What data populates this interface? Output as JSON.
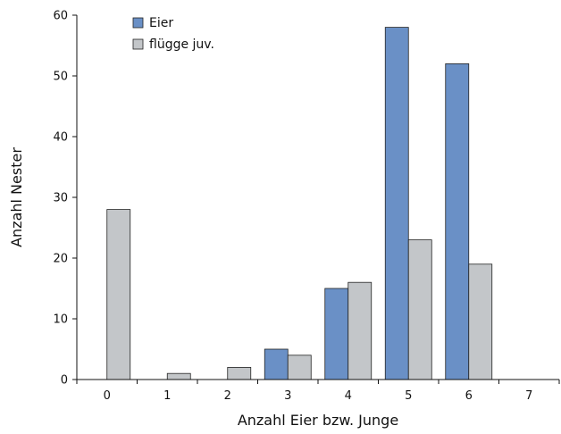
{
  "chart_data": {
    "type": "bar",
    "categories": [
      "0",
      "1",
      "2",
      "3",
      "4",
      "5",
      "6",
      "7"
    ],
    "series": [
      {
        "name": "Eier",
        "color": "#6a90c6",
        "values": [
          0,
          0,
          0,
          5,
          15,
          58,
          52,
          0
        ]
      },
      {
        "name": "flügge juv.",
        "color": "#c3c6c9",
        "values": [
          28,
          1,
          2,
          4,
          16,
          23,
          19,
          0
        ]
      }
    ],
    "xlabel": "Anzahl Eier bzw. Junge",
    "ylabel": "Anzahl Nester",
    "ylim": [
      0,
      60
    ],
    "yticks": [
      0,
      10,
      20,
      30,
      40,
      50,
      60
    ],
    "grid": false,
    "legend": "top-left"
  }
}
